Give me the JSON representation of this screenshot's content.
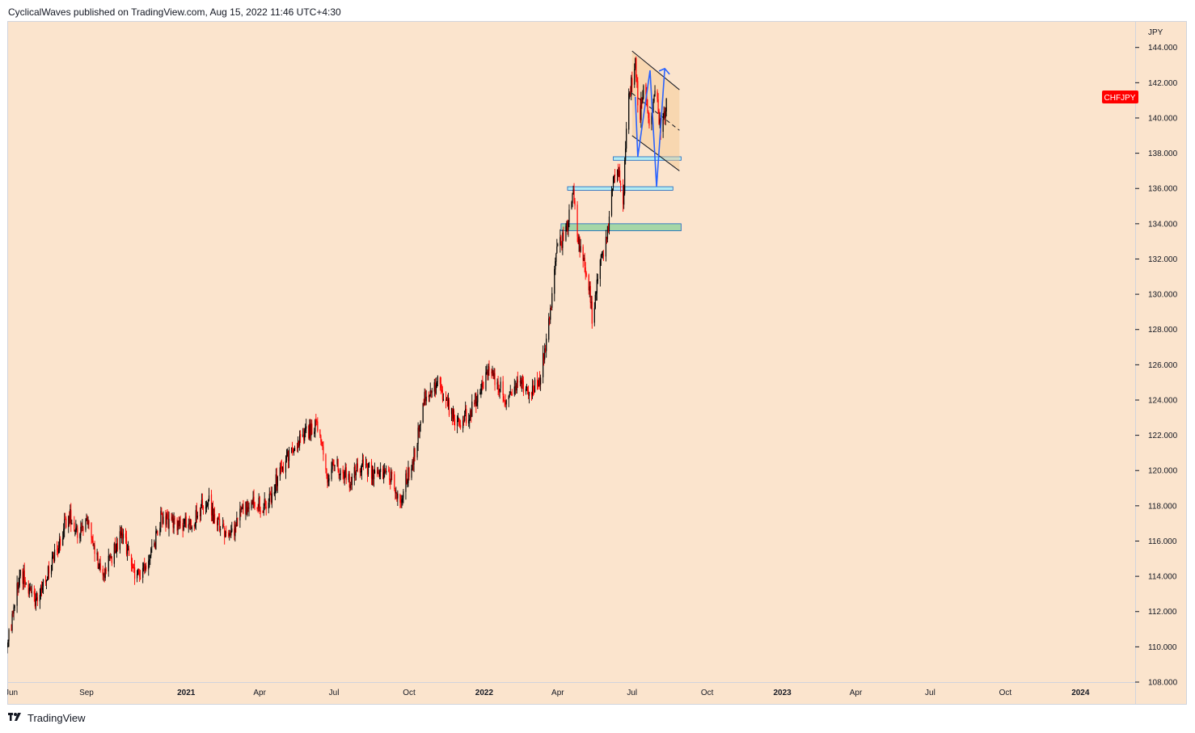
{
  "header": {
    "text": "CyclicalWaves published on TradingView.com, Aug 15, 2022 11:46 UTC+4:30"
  },
  "footer": {
    "brand": "TradingView",
    "logo_icon": "tradingview-logo-icon"
  },
  "colors": {
    "background": "#fbe4cd",
    "up_candle": "#000000",
    "down_candle": "#ff0000",
    "symbol_badge": "#ff0000",
    "zone_green": "#a5d6a7",
    "zone_blue": "#b2ebf2",
    "zone_border": "#1565c0",
    "projection": "#2962ff"
  },
  "chart_data": {
    "type": "candlestick",
    "symbol": "CHFJPY",
    "currency_label": "JPY",
    "y_ticks": [
      "144.000",
      "142.000",
      "140.000",
      "138.000",
      "136.000",
      "134.000",
      "132.000",
      "130.000",
      "128.000",
      "126.000",
      "124.000",
      "122.000",
      "120.000",
      "118.000",
      "116.000",
      "114.000",
      "112.000",
      "110.000",
      "108.000"
    ],
    "ylim": [
      108,
      145.5
    ],
    "x_ticks": [
      {
        "label": "Jun",
        "date": "2020-06-01",
        "bold": false
      },
      {
        "label": "Sep",
        "date": "2020-09-01",
        "bold": false
      },
      {
        "label": "2021",
        "date": "2021-01-01",
        "bold": true
      },
      {
        "label": "Apr",
        "date": "2021-04-01",
        "bold": false
      },
      {
        "label": "Jul",
        "date": "2021-07-01",
        "bold": false
      },
      {
        "label": "Oct",
        "date": "2021-10-01",
        "bold": false
      },
      {
        "label": "2022",
        "date": "2022-01-01",
        "bold": true
      },
      {
        "label": "Apr",
        "date": "2022-04-01",
        "bold": false
      },
      {
        "label": "Jul",
        "date": "2022-07-01",
        "bold": false
      },
      {
        "label": "Oct",
        "date": "2022-10-01",
        "bold": false
      },
      {
        "label": "2023",
        "date": "2023-01-01",
        "bold": true
      },
      {
        "label": "Apr",
        "date": "2023-04-01",
        "bold": false
      },
      {
        "label": "Jul",
        "date": "2023-07-01",
        "bold": false
      },
      {
        "label": "Oct",
        "date": "2023-10-01",
        "bold": false
      },
      {
        "label": "2024",
        "date": "2024-01-01",
        "bold": true
      }
    ],
    "x_range": [
      "2020-05-27",
      "2024-03-08"
    ],
    "price_path": [
      {
        "date": "2020-05-27",
        "close": 110.0
      },
      {
        "date": "2020-06-12",
        "close": 114.3
      },
      {
        "date": "2020-06-28",
        "close": 112.5
      },
      {
        "date": "2020-07-25",
        "close": 115.2
      },
      {
        "date": "2020-08-10",
        "close": 117.6
      },
      {
        "date": "2020-08-22",
        "close": 116.2
      },
      {
        "date": "2020-09-01",
        "close": 117.3
      },
      {
        "date": "2020-09-20",
        "close": 114.0
      },
      {
        "date": "2020-10-05",
        "close": 115.5
      },
      {
        "date": "2020-10-15",
        "close": 116.5
      },
      {
        "date": "2020-10-30",
        "close": 114.0
      },
      {
        "date": "2020-11-10",
        "close": 114.3
      },
      {
        "date": "2020-11-20",
        "close": 115.3
      },
      {
        "date": "2020-12-01",
        "close": 117.3
      },
      {
        "date": "2020-12-20",
        "close": 116.8
      },
      {
        "date": "2021-01-10",
        "close": 117.2
      },
      {
        "date": "2021-01-28",
        "close": 118.5
      },
      {
        "date": "2021-02-05",
        "close": 117.0
      },
      {
        "date": "2021-02-20",
        "close": 116.6
      },
      {
        "date": "2021-03-01",
        "close": 116.5
      },
      {
        "date": "2021-03-10",
        "close": 117.8
      },
      {
        "date": "2021-03-28",
        "close": 118.1
      },
      {
        "date": "2021-04-10",
        "close": 118.0
      },
      {
        "date": "2021-04-28",
        "close": 120.2
      },
      {
        "date": "2021-05-15",
        "close": 121.5
      },
      {
        "date": "2021-06-01",
        "close": 122.3
      },
      {
        "date": "2021-06-12",
        "close": 122.6
      },
      {
        "date": "2021-06-22",
        "close": 119.7
      },
      {
        "date": "2021-07-05",
        "close": 120.3
      },
      {
        "date": "2021-07-20",
        "close": 119.5
      },
      {
        "date": "2021-08-05",
        "close": 120.4
      },
      {
        "date": "2021-08-20",
        "close": 119.7
      },
      {
        "date": "2021-09-05",
        "close": 120.1
      },
      {
        "date": "2021-09-20",
        "close": 118.0
      },
      {
        "date": "2021-09-28",
        "close": 119.6
      },
      {
        "date": "2021-10-05",
        "close": 120.4
      },
      {
        "date": "2021-10-20",
        "close": 124.0
      },
      {
        "date": "2021-11-05",
        "close": 124.9
      },
      {
        "date": "2021-11-28",
        "close": 122.7
      },
      {
        "date": "2021-12-15",
        "close": 123.3
      },
      {
        "date": "2022-01-05",
        "close": 125.6
      },
      {
        "date": "2022-01-15",
        "close": 125.2
      },
      {
        "date": "2022-01-28",
        "close": 124.0
      },
      {
        "date": "2022-02-10",
        "close": 124.8
      },
      {
        "date": "2022-03-01",
        "close": 124.5
      },
      {
        "date": "2022-03-10",
        "close": 125.2
      },
      {
        "date": "2022-03-20",
        "close": 128.0
      },
      {
        "date": "2022-04-01",
        "close": 132.7
      },
      {
        "date": "2022-04-10",
        "close": 133.3
      },
      {
        "date": "2022-04-20",
        "close": 135.5
      },
      {
        "date": "2022-04-28",
        "close": 132.5
      },
      {
        "date": "2022-05-08",
        "close": 131.0
      },
      {
        "date": "2022-05-14",
        "close": 128.2
      },
      {
        "date": "2022-05-20",
        "close": 131.0
      },
      {
        "date": "2022-05-31",
        "close": 133.3
      },
      {
        "date": "2022-06-08",
        "close": 136.3
      },
      {
        "date": "2022-06-14",
        "close": 137.0
      },
      {
        "date": "2022-06-20",
        "close": 135.0
      },
      {
        "date": "2022-06-25",
        "close": 140.5
      },
      {
        "date": "2022-06-30",
        "close": 142.0
      },
      {
        "date": "2022-07-05",
        "close": 143.0
      },
      {
        "date": "2022-07-10",
        "close": 139.8
      },
      {
        "date": "2022-07-16",
        "close": 142.5
      },
      {
        "date": "2022-07-22",
        "close": 139.5
      },
      {
        "date": "2022-07-30",
        "close": 142.0
      },
      {
        "date": "2022-08-05",
        "close": 139.0
      },
      {
        "date": "2022-08-15",
        "close": 141.8
      }
    ],
    "annotations": {
      "channel": {
        "start": {
          "date": "2022-07-01",
          "price": 143.8
        },
        "end": {
          "date": "2022-08-28",
          "price": 141.6
        },
        "low_start_price": 139.0,
        "low_end_price": 137.0
      },
      "zones": [
        {
          "start": "2022-06-08",
          "end": "2022-08-30",
          "top": 137.8,
          "bottom": 137.6,
          "color": "blue"
        },
        {
          "start": "2022-04-13",
          "end": "2022-08-20",
          "top": 136.1,
          "bottom": 135.9,
          "color": "blue"
        },
        {
          "start": "2022-04-05",
          "end": "2022-08-30",
          "top": 134.0,
          "bottom": 133.6,
          "color": "green"
        }
      ],
      "wave_path": [
        {
          "date": "2022-07-05",
          "price": 141.2
        },
        {
          "date": "2022-07-08",
          "price": 137.8
        },
        {
          "date": "2022-07-23",
          "price": 142.7
        },
        {
          "date": "2022-07-31",
          "price": 136.1
        },
        {
          "date": "2022-08-10",
          "price": 142.8
        }
      ]
    }
  }
}
